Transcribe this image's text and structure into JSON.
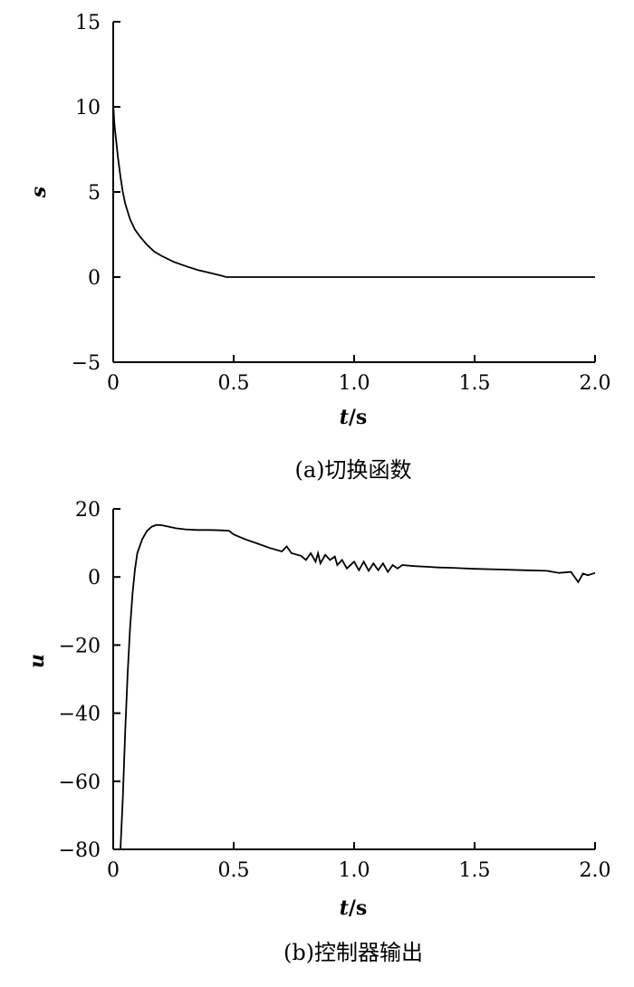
{
  "chart_data": [
    {
      "type": "line",
      "caption": "(a)切换函数",
      "ylabel": "s",
      "xlabel_var": "t",
      "xlabel_unit": "/s",
      "xlim": [
        0,
        2.0
      ],
      "ylim": [
        -5,
        15
      ],
      "x_ticks": [
        "0",
        "0.5",
        "1.0",
        "1.5",
        "2.0"
      ],
      "x_tick_values": [
        0,
        0.5,
        1.0,
        1.5,
        2.0
      ],
      "y_ticks": [
        "15",
        "10",
        "5",
        "0",
        "-5"
      ],
      "y_tick_values": [
        15,
        10,
        5,
        0,
        -5
      ],
      "series": [
        {
          "x": [
            0,
            0.005,
            0.01,
            0.02,
            0.03,
            0.04,
            0.05,
            0.07,
            0.09,
            0.11,
            0.14,
            0.17,
            0.2,
            0.25,
            0.3,
            0.35,
            0.4,
            0.45,
            0.47,
            0.6,
            0.8,
            1.0,
            1.2,
            1.4,
            1.6,
            1.8,
            2.0
          ],
          "y": [
            10.2,
            9.0,
            8.3,
            7.0,
            5.9,
            5.0,
            4.3,
            3.4,
            2.8,
            2.4,
            1.9,
            1.5,
            1.25,
            0.9,
            0.65,
            0.42,
            0.25,
            0.08,
            0,
            0,
            0,
            0,
            0,
            0,
            0,
            0,
            0
          ]
        }
      ]
    },
    {
      "type": "line",
      "caption": "(b)控制器输出",
      "ylabel": "u",
      "xlabel_var": "t",
      "xlabel_unit": "/s",
      "xlim": [
        0,
        2.0
      ],
      "ylim": [
        -80,
        20
      ],
      "x_ticks": [
        "0",
        "0.5",
        "1.0",
        "1.5",
        "2.0"
      ],
      "x_tick_values": [
        0,
        0.5,
        1.0,
        1.5,
        2.0
      ],
      "y_ticks": [
        "20",
        "0",
        "-20",
        "-40",
        "-60",
        "-80"
      ],
      "y_tick_values": [
        20,
        0,
        -20,
        -40,
        -60,
        -80
      ],
      "series": [
        {
          "x": [
            0.03,
            0.04,
            0.05,
            0.06,
            0.07,
            0.08,
            0.09,
            0.1,
            0.12,
            0.14,
            0.16,
            0.18,
            0.2,
            0.23,
            0.26,
            0.3,
            0.35,
            0.4,
            0.45,
            0.48,
            0.5,
            0.55,
            0.6,
            0.65,
            0.7,
            0.72,
            0.74,
            0.78,
            0.8,
            0.82,
            0.84,
            0.85,
            0.86,
            0.88,
            0.9,
            0.92,
            0.93,
            0.95,
            0.97,
            1.0,
            1.02,
            1.04,
            1.06,
            1.08,
            1.1,
            1.12,
            1.14,
            1.16,
            1.18,
            1.2,
            1.25,
            1.3,
            1.35,
            1.4,
            1.5,
            1.6,
            1.7,
            1.8,
            1.85,
            1.9,
            1.93,
            1.95,
            1.97,
            2.0
          ],
          "y": [
            -80,
            -65,
            -45,
            -28,
            -15,
            -5,
            2,
            7,
            11,
            13.5,
            14.8,
            15.3,
            15.2,
            14.8,
            14.3,
            14.0,
            13.8,
            13.8,
            13.7,
            13.6,
            12.5,
            11.0,
            9.8,
            8.5,
            7.5,
            9.0,
            7.0,
            6.2,
            5.0,
            7.0,
            4.5,
            7.0,
            4.0,
            6.5,
            5.0,
            6.0,
            3.5,
            5.0,
            2.5,
            4.5,
            2.0,
            4.5,
            1.8,
            4.0,
            2.0,
            4.0,
            1.5,
            3.5,
            2.5,
            3.5,
            3.2,
            3.0,
            2.8,
            2.7,
            2.4,
            2.2,
            2.0,
            1.8,
            1.2,
            1.5,
            -1.5,
            1.0,
            0.5,
            1.2
          ]
        }
      ]
    }
  ]
}
